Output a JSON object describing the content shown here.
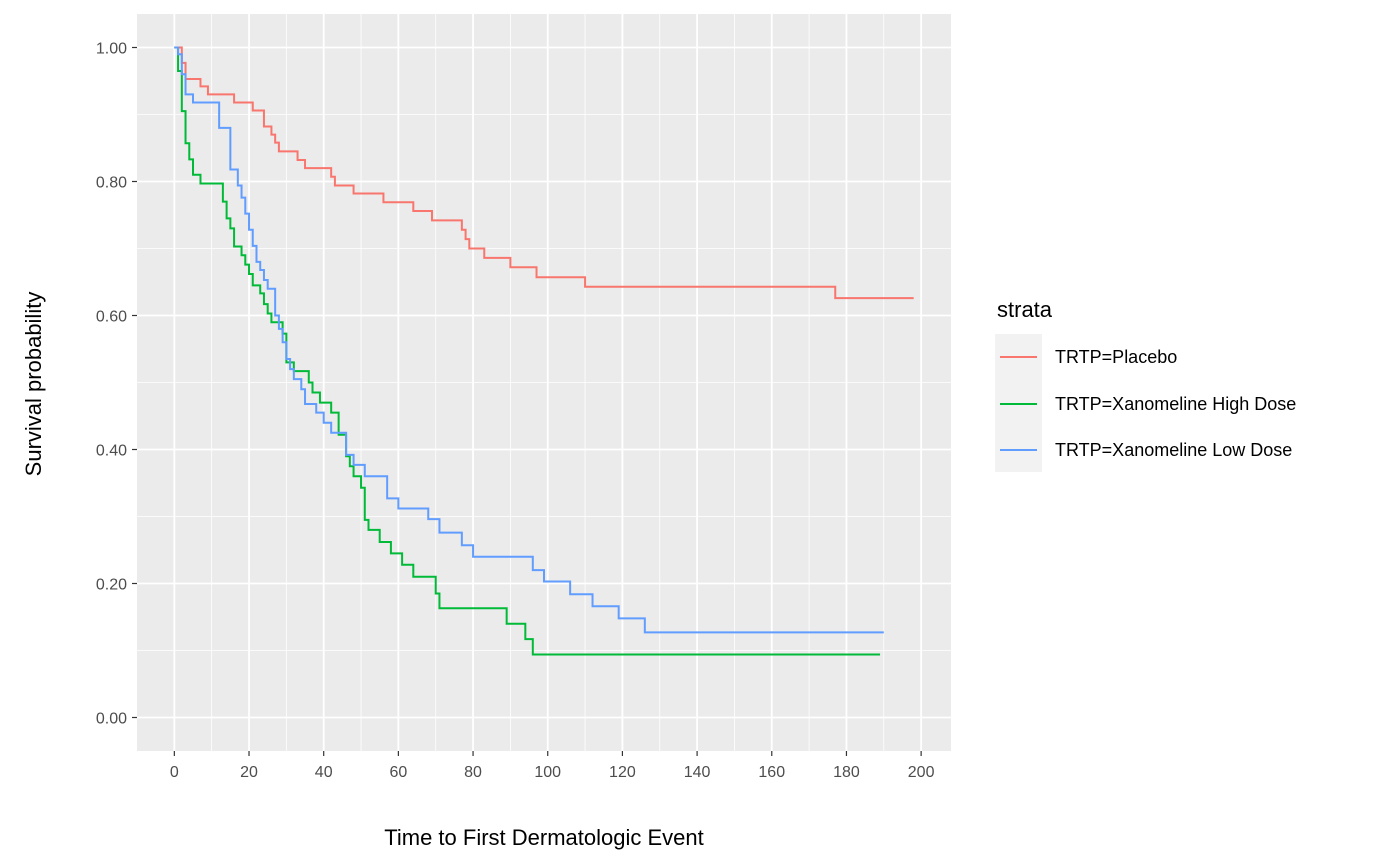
{
  "chart_data": {
    "type": "line",
    "step": true,
    "xlabel": "Time to First Dermatologic Event",
    "ylabel": "Survival probability",
    "xlim": [
      -10,
      208
    ],
    "ylim": [
      -0.05,
      1.05
    ],
    "x_ticks": [
      0,
      20,
      40,
      60,
      80,
      100,
      120,
      140,
      160,
      180,
      200
    ],
    "x_tick_labels": [
      "0",
      "20",
      "40",
      "60",
      "80",
      "100",
      "120",
      "140",
      "160",
      "180",
      "200"
    ],
    "y_ticks": [
      0,
      0.2,
      0.4,
      0.6,
      0.8,
      1.0
    ],
    "y_tick_labels": [
      "0.00",
      "0.20",
      "0.40",
      "0.60",
      "0.80",
      "1.00"
    ],
    "grid": true,
    "legend": {
      "title": "strata",
      "placement": "right"
    },
    "series": [
      {
        "name": "TRTP=Placebo",
        "color": "#F8766D",
        "points": [
          [
            0,
            1.0
          ],
          [
            1,
            1.0
          ],
          [
            2,
            0.977
          ],
          [
            3,
            0.953
          ],
          [
            7,
            0.942
          ],
          [
            9,
            0.93
          ],
          [
            16,
            0.918
          ],
          [
            21,
            0.906
          ],
          [
            24,
            0.882
          ],
          [
            26,
            0.87
          ],
          [
            27,
            0.858
          ],
          [
            28,
            0.845
          ],
          [
            33,
            0.832
          ],
          [
            35,
            0.82
          ],
          [
            42,
            0.807
          ],
          [
            43,
            0.794
          ],
          [
            48,
            0.782
          ],
          [
            56,
            0.769
          ],
          [
            64,
            0.756
          ],
          [
            69,
            0.742
          ],
          [
            77,
            0.728
          ],
          [
            78,
            0.714
          ],
          [
            79,
            0.7
          ],
          [
            83,
            0.686
          ],
          [
            90,
            0.672
          ],
          [
            97,
            0.657
          ],
          [
            110,
            0.643
          ],
          [
            177,
            0.626
          ],
          [
            198,
            0.626
          ]
        ]
      },
      {
        "name": "TRTP=Xanomeline High Dose",
        "color": "#00BA38",
        "points": [
          [
            0,
            1.0
          ],
          [
            1,
            0.965
          ],
          [
            2,
            0.905
          ],
          [
            3,
            0.857
          ],
          [
            4,
            0.833
          ],
          [
            5,
            0.81
          ],
          [
            7,
            0.797
          ],
          [
            13,
            0.77
          ],
          [
            14,
            0.745
          ],
          [
            15,
            0.73
          ],
          [
            16,
            0.703
          ],
          [
            18,
            0.69
          ],
          [
            19,
            0.676
          ],
          [
            20,
            0.662
          ],
          [
            21,
            0.645
          ],
          [
            23,
            0.633
          ],
          [
            24,
            0.617
          ],
          [
            25,
            0.603
          ],
          [
            26,
            0.59
          ],
          [
            29,
            0.573
          ],
          [
            30,
            0.53
          ],
          [
            32,
            0.517
          ],
          [
            36,
            0.5
          ],
          [
            37,
            0.485
          ],
          [
            39,
            0.47
          ],
          [
            42,
            0.455
          ],
          [
            44,
            0.422
          ],
          [
            46,
            0.39
          ],
          [
            47,
            0.375
          ],
          [
            48,
            0.36
          ],
          [
            50,
            0.343
          ],
          [
            51,
            0.295
          ],
          [
            52,
            0.28
          ],
          [
            55,
            0.262
          ],
          [
            58,
            0.245
          ],
          [
            61,
            0.228
          ],
          [
            64,
            0.21
          ],
          [
            70,
            0.185
          ],
          [
            71,
            0.163
          ],
          [
            89,
            0.14
          ],
          [
            94,
            0.117
          ],
          [
            96,
            0.094
          ],
          [
            189,
            0.094
          ]
        ]
      },
      {
        "name": "TRTP=Xanomeline Low Dose",
        "color": "#619CFF",
        "points": [
          [
            0,
            1.0
          ],
          [
            1,
            0.99
          ],
          [
            2,
            0.96
          ],
          [
            3,
            0.93
          ],
          [
            5,
            0.918
          ],
          [
            12,
            0.88
          ],
          [
            15,
            0.818
          ],
          [
            17,
            0.794
          ],
          [
            18,
            0.776
          ],
          [
            19,
            0.752
          ],
          [
            20,
            0.728
          ],
          [
            21,
            0.704
          ],
          [
            22,
            0.68
          ],
          [
            23,
            0.668
          ],
          [
            24,
            0.653
          ],
          [
            25,
            0.64
          ],
          [
            27,
            0.6
          ],
          [
            28,
            0.58
          ],
          [
            29,
            0.56
          ],
          [
            30,
            0.535
          ],
          [
            31,
            0.52
          ],
          [
            32,
            0.505
          ],
          [
            34,
            0.49
          ],
          [
            35,
            0.468
          ],
          [
            38,
            0.455
          ],
          [
            40,
            0.44
          ],
          [
            42,
            0.425
          ],
          [
            46,
            0.392
          ],
          [
            48,
            0.377
          ],
          [
            51,
            0.36
          ],
          [
            57,
            0.327
          ],
          [
            60,
            0.312
          ],
          [
            68,
            0.296
          ],
          [
            71,
            0.276
          ],
          [
            77,
            0.257
          ],
          [
            80,
            0.24
          ],
          [
            96,
            0.22
          ],
          [
            99,
            0.203
          ],
          [
            106,
            0.184
          ],
          [
            112,
            0.166
          ],
          [
            119,
            0.148
          ],
          [
            126,
            0.127
          ],
          [
            190,
            0.127
          ]
        ]
      }
    ]
  }
}
